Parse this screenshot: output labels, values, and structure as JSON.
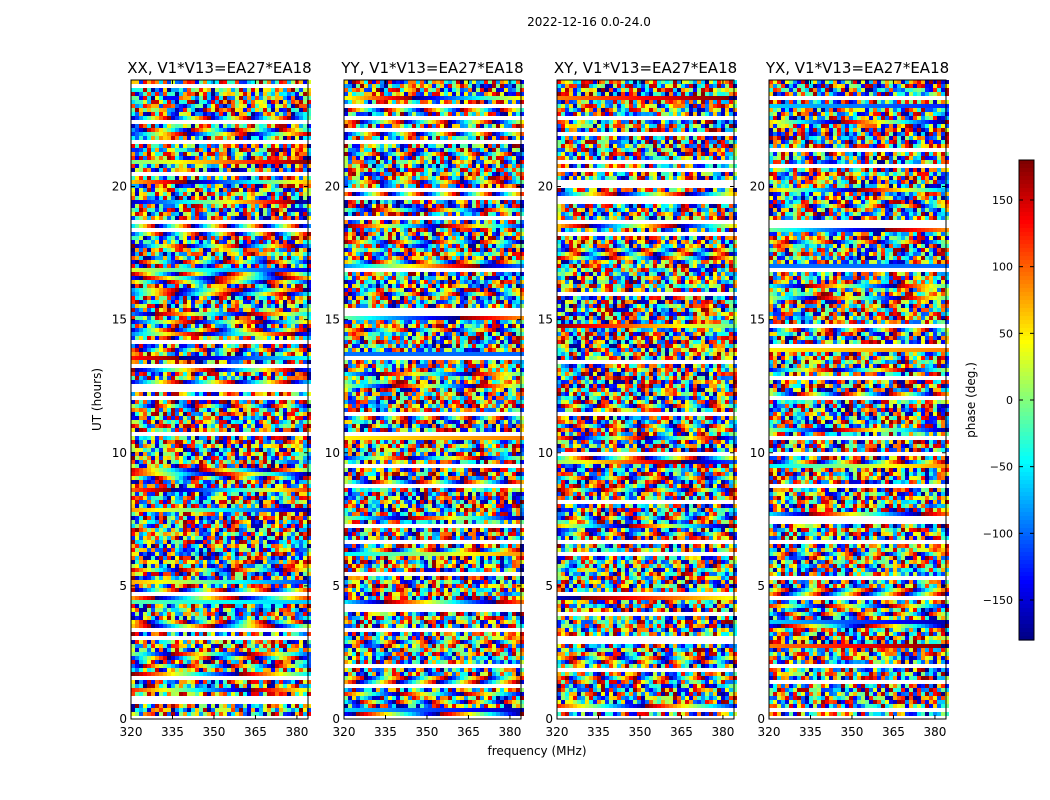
{
  "suptitle": "2022-12-16 0.0-24.0",
  "colormap": [
    "#00007f",
    "#0000ff",
    "#007fff",
    "#00ffff",
    "#7fff7f",
    "#ffff00",
    "#ff7f00",
    "#ff0000",
    "#7f0000"
  ],
  "chart_data": [
    {
      "type": "heatmap",
      "title": "XX, V1*V13=EA27*EA18",
      "xlabel": "",
      "ylabel": "UT (hours)",
      "xlim": [
        320,
        384
      ],
      "ylim": [
        0,
        24
      ],
      "x_ticks": [
        320,
        335,
        350,
        365,
        380
      ],
      "y_ticks": [
        0,
        5,
        10,
        15,
        20
      ],
      "z_label": "phase (deg.)"
    },
    {
      "type": "heatmap",
      "title": "YY, V1*V13=EA27*EA18",
      "xlabel": "frequency (MHz)",
      "ylabel": "",
      "xlim": [
        320,
        384
      ],
      "ylim": [
        0,
        24
      ],
      "x_ticks": [
        320,
        335,
        350,
        365,
        380
      ],
      "y_ticks": [
        0,
        5,
        10,
        15,
        20
      ],
      "z_label": "phase (deg.)"
    },
    {
      "type": "heatmap",
      "title": "XY, V1*V13=EA27*EA18",
      "xlabel": "",
      "ylabel": "",
      "xlim": [
        320,
        384
      ],
      "ylim": [
        0,
        24
      ],
      "x_ticks": [
        320,
        335,
        350,
        365,
        380
      ],
      "y_ticks": [
        0,
        5,
        10,
        15,
        20
      ],
      "z_label": "phase (deg.)"
    },
    {
      "type": "heatmap",
      "title": "YX, V1*V13=EA27*EA18",
      "xlabel": "",
      "ylabel": "",
      "xlim": [
        320,
        384
      ],
      "ylim": [
        0,
        24
      ],
      "x_ticks": [
        320,
        335,
        350,
        365,
        380
      ],
      "y_ticks": [
        0,
        5,
        10,
        15,
        20
      ],
      "z_label": "phase (deg.)"
    }
  ],
  "colorbar": {
    "label": "phase (deg.)",
    "range": [
      -180,
      180
    ],
    "ticks": [
      150,
      100,
      50,
      0,
      -50,
      -100,
      -150
    ],
    "tick_labels": [
      "150",
      "100",
      "50",
      "0",
      "−50",
      "−100",
      "−150"
    ]
  }
}
